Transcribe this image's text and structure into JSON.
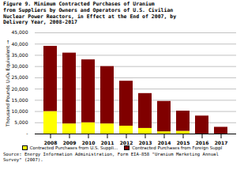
{
  "chart_data": {
    "type": "bar",
    "stacked": true,
    "title": "Figure 9.  Minimum Contracted Purchases of Uranium\nfrom Suppliers by Owners and Operators of U.S. Civilian\nNuclear Power Reactors, in Effect at the End of 2007, by\nDelivery Year, 2008-2017",
    "ylabel": "Thousand Pounds U₃O₈ Equivalent",
    "caption": "Source: Energy Information Administration, Form EIA-858 \"Uranium Marketing Annual\nSurvey\" (2007).",
    "categories": [
      "2008",
      "2009",
      "2010",
      "2011",
      "2012",
      "2013",
      "2014",
      "2015",
      "2016",
      "2017"
    ],
    "series": [
      {
        "name": "Contracted Purchases from U.S. Suppli...",
        "color": "#FFFF00",
        "values": [
          10000,
          4500,
          5000,
          4500,
          3500,
          2500,
          1000,
          1200,
          0,
          0
        ]
      },
      {
        "name": "Contracted Purchases from Foreign Suppl",
        "color": "#800000",
        "values": [
          29000,
          31500,
          28000,
          25500,
          20000,
          15500,
          13500,
          9000,
          8000,
          3000
        ]
      }
    ],
    "ylim": [
      0,
      45000
    ],
    "yticks": [
      {
        "value": 0,
        "label": "-"
      },
      {
        "value": 5000,
        "label": "5,000"
      },
      {
        "value": 10000,
        "label": "10,000"
      },
      {
        "value": 15000,
        "label": "15,000"
      },
      {
        "value": 20000,
        "label": "20,000"
      },
      {
        "value": 25000,
        "label": "25,000"
      },
      {
        "value": 30000,
        "label": "30,000"
      },
      {
        "value": 35000,
        "label": "35,000"
      },
      {
        "value": 40000,
        "label": "40,000"
      },
      {
        "value": 45000,
        "label": "45,000"
      }
    ],
    "grid": true,
    "legend": "bottom"
  }
}
